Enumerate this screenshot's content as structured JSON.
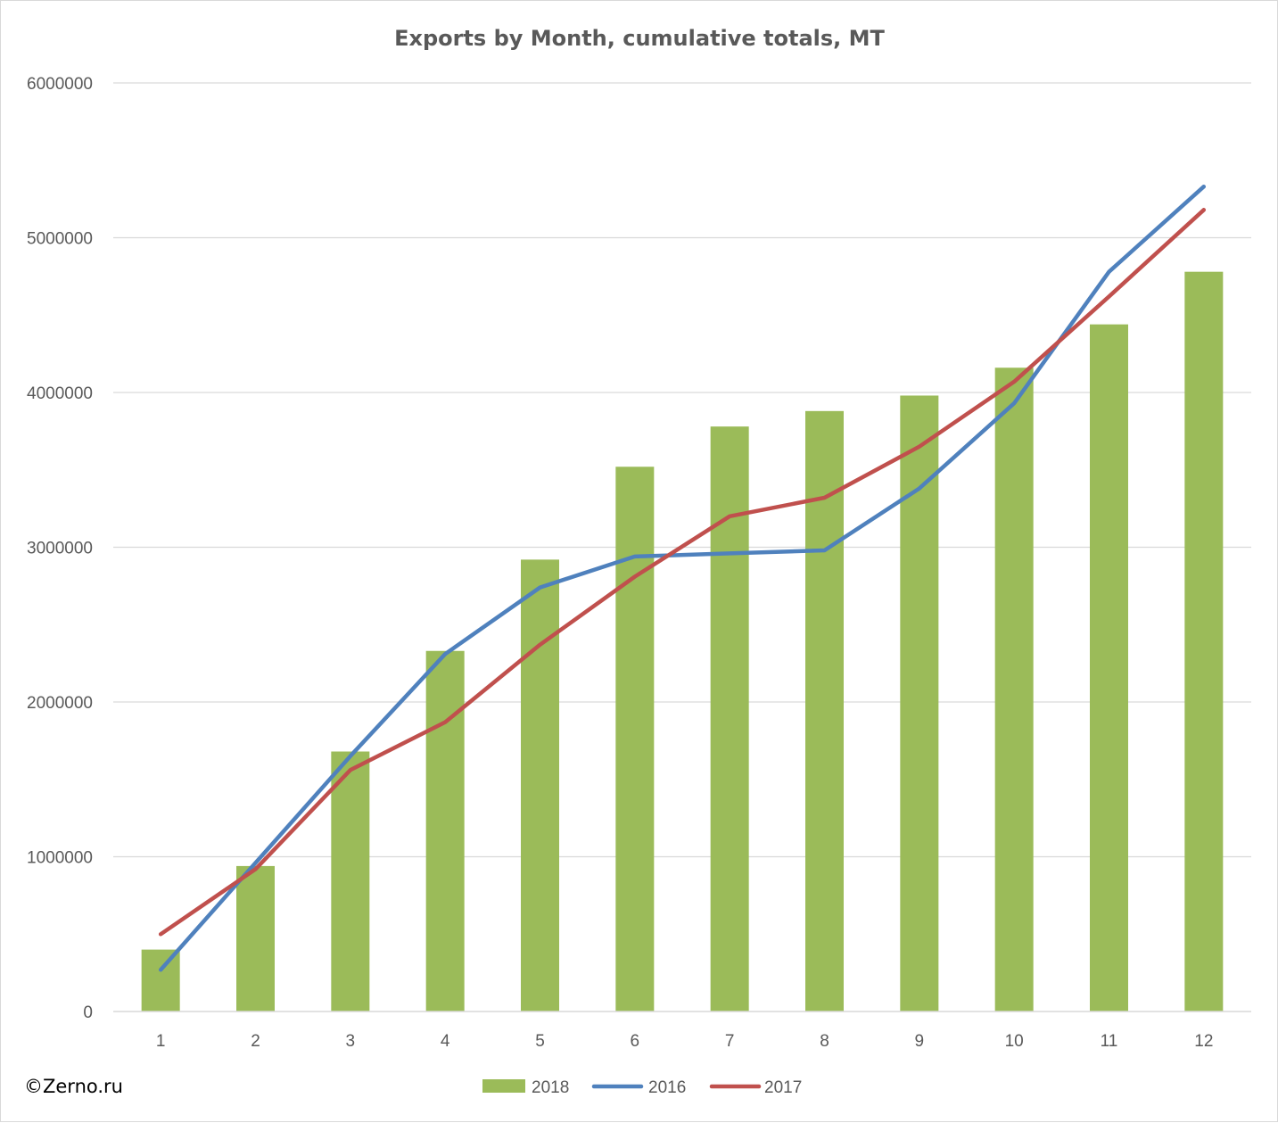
{
  "copyright": "©Zerno.ru",
  "colors": {
    "s2018": "#9bbb59",
    "s2016": "#4f81bd",
    "s2017": "#c0504d",
    "grid": "#d9d9d9",
    "text": "#595959"
  },
  "chart_data": {
    "type": "bar+line",
    "title": "Exports by Month, cumulative totals, MT",
    "xlabel": "",
    "ylabel": "",
    "categories": [
      "1",
      "2",
      "3",
      "4",
      "5",
      "6",
      "7",
      "8",
      "9",
      "10",
      "11",
      "12"
    ],
    "ylim": [
      0,
      6000000
    ],
    "yticks": [
      "0",
      "1000000",
      "2000000",
      "3000000",
      "4000000",
      "5000000",
      "6000000"
    ],
    "grid": true,
    "legend_position": "bottom",
    "series": [
      {
        "name": "2018",
        "type": "bar",
        "values": [
          400000,
          940000,
          1680000,
          2330000,
          2920000,
          3520000,
          3780000,
          3880000,
          3980000,
          4160000,
          4440000,
          4780000
        ]
      },
      {
        "name": "2016",
        "type": "line",
        "values": [
          270000,
          960000,
          1650000,
          2310000,
          2740000,
          2940000,
          2960000,
          2980000,
          3380000,
          3930000,
          4780000,
          5330000
        ]
      },
      {
        "name": "2017",
        "type": "line",
        "values": [
          500000,
          920000,
          1560000,
          1870000,
          2370000,
          2810000,
          3200000,
          3320000,
          3650000,
          4070000,
          4620000,
          5180000
        ]
      }
    ]
  }
}
